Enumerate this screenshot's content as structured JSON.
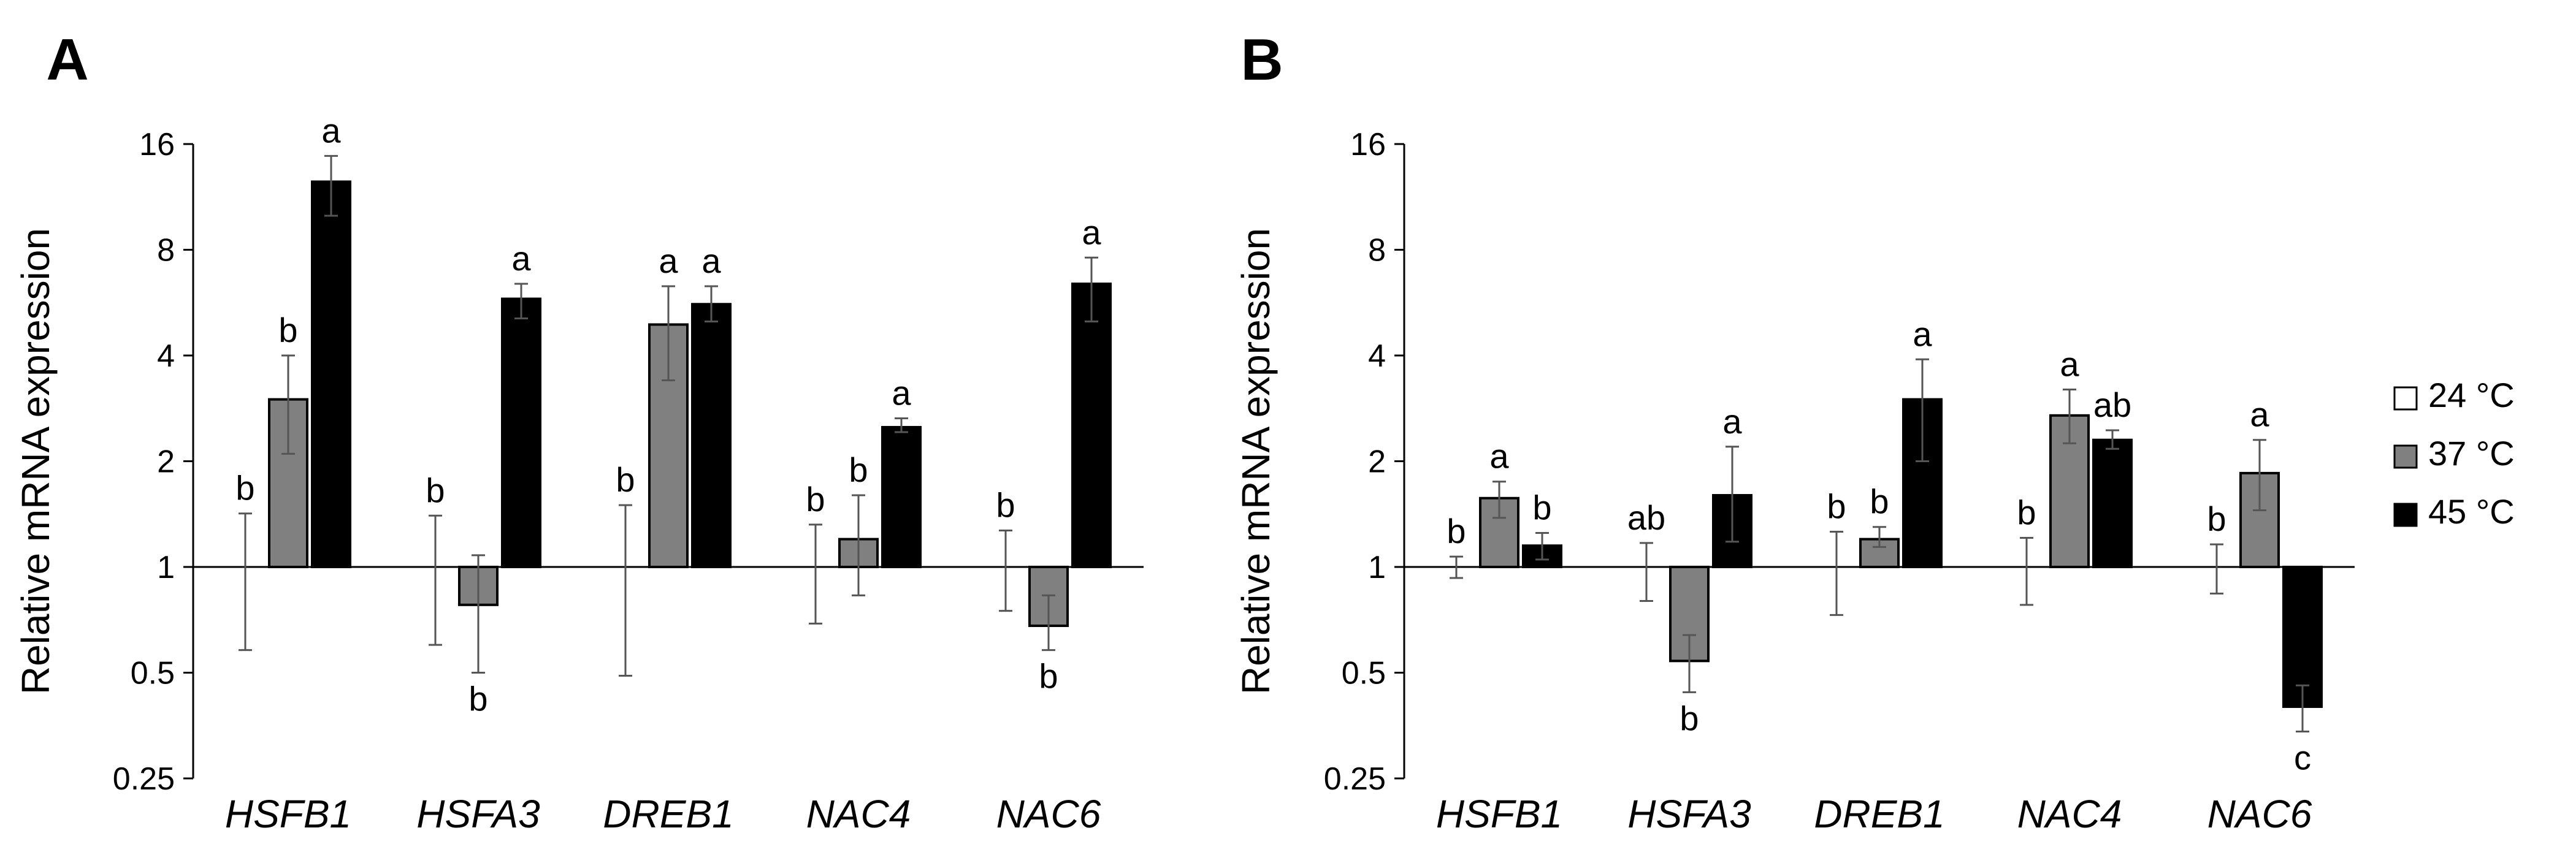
{
  "chart_data": [
    {
      "type": "bar",
      "panel_label": "A",
      "title": "",
      "xlabel": "",
      "ylabel": "Relative mRNA expression",
      "yscale": "log2",
      "ylim": [
        0.25,
        16
      ],
      "yticks": [
        "0.25",
        "0.5",
        "1",
        "2",
        "4",
        "8",
        "16"
      ],
      "categories": [
        "HSFB1",
        "HSFA3",
        "DREB1",
        "NAC4",
        "NAC6"
      ],
      "series": [
        {
          "name": "24 °C",
          "values": [
            1,
            1,
            1,
            1,
            1
          ],
          "err_low": [
            0.58,
            0.6,
            0.49,
            0.69,
            0.75
          ],
          "err_high": [
            1.42,
            1.4,
            1.5,
            1.32,
            1.27
          ],
          "labels": [
            "b",
            "b",
            "b",
            "b",
            "b"
          ]
        },
        {
          "name": "37 °C",
          "values": [
            3.0,
            0.78,
            4.9,
            1.2,
            0.68
          ],
          "err_low": [
            2.1,
            0.5,
            3.4,
            0.83,
            0.58
          ],
          "err_high": [
            4.0,
            1.08,
            6.3,
            1.6,
            0.83
          ],
          "labels": [
            "b",
            "b",
            "a",
            "b",
            "b"
          ]
        },
        {
          "name": "45 °C",
          "values": [
            12.5,
            5.8,
            5.6,
            2.5,
            6.4
          ],
          "err_low": [
            10.0,
            5.1,
            5.0,
            2.42,
            5.0
          ],
          "err_high": [
            14.8,
            6.4,
            6.3,
            2.65,
            7.6
          ],
          "labels": [
            "a",
            "a",
            "a",
            "a",
            "a"
          ]
        }
      ]
    },
    {
      "type": "bar",
      "panel_label": "B",
      "title": "",
      "xlabel": "",
      "ylabel": "Relative mRNA expression",
      "yscale": "log2",
      "ylim": [
        0.25,
        16
      ],
      "yticks": [
        "0.25",
        "0.5",
        "1",
        "2",
        "4",
        "8",
        "16"
      ],
      "categories": [
        "HSFB1",
        "HSFA3",
        "DREB1",
        "NAC4",
        "NAC6"
      ],
      "series": [
        {
          "name": "24 °C",
          "values": [
            1,
            1,
            1,
            1,
            1
          ],
          "err_low": [
            0.93,
            0.8,
            0.73,
            0.78,
            0.84
          ],
          "err_high": [
            1.07,
            1.17,
            1.26,
            1.21,
            1.16
          ],
          "labels": [
            "b",
            "ab",
            "b",
            "b",
            "b"
          ]
        },
        {
          "name": "37 °C",
          "values": [
            1.57,
            0.54,
            1.2,
            2.7,
            1.85
          ],
          "err_low": [
            1.38,
            0.44,
            1.14,
            2.25,
            1.45
          ],
          "err_high": [
            1.75,
            0.64,
            1.3,
            3.2,
            2.3
          ],
          "labels": [
            "a",
            "b",
            "b",
            "a",
            "a"
          ]
        },
        {
          "name": "45 °C",
          "values": [
            1.15,
            1.6,
            3.0,
            2.3,
            0.4
          ],
          "err_low": [
            1.05,
            1.18,
            2.0,
            2.17,
            0.34
          ],
          "err_high": [
            1.25,
            2.2,
            3.9,
            2.45,
            0.46
          ],
          "labels": [
            "b",
            "a",
            "a",
            "ab",
            "c"
          ]
        }
      ]
    }
  ],
  "legend": {
    "placement": "right",
    "items": [
      {
        "name": "24 °C",
        "color": "#ffffff"
      },
      {
        "name": "37 °C",
        "color": "#808080"
      },
      {
        "name": "45 °C",
        "color": "#000000"
      }
    ]
  },
  "colors": {
    "axis": "#000000",
    "error_bar": "#555555"
  }
}
